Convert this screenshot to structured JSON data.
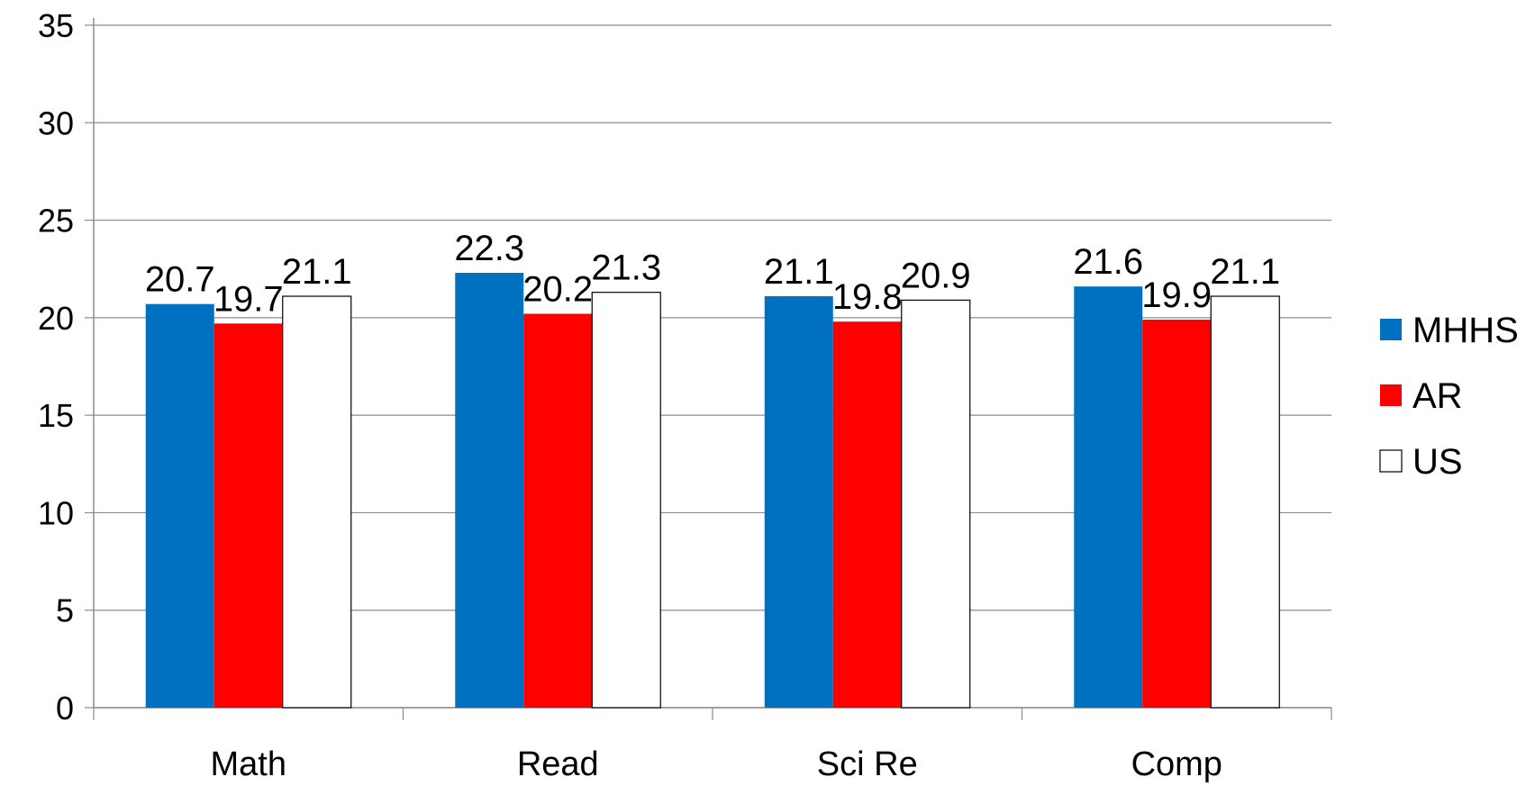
{
  "chart_data": {
    "type": "bar",
    "title": "",
    "xlabel": "",
    "ylabel": "",
    "categories": [
      "Math",
      "Read",
      "Sci Re",
      "Comp"
    ],
    "series": [
      {
        "name": "MHHS",
        "values": [
          20.7,
          22.3,
          21.1,
          21.6
        ],
        "color": "#0070C0"
      },
      {
        "name": "AR",
        "values": [
          19.7,
          20.2,
          19.8,
          19.9
        ],
        "color": "#FF0000"
      },
      {
        "name": "US",
        "values": [
          21.1,
          21.3,
          20.9,
          21.1
        ],
        "color": "#FFFFFF"
      }
    ],
    "ylim": [
      0,
      35
    ],
    "yticks": [
      0,
      5,
      10,
      15,
      20,
      25,
      30,
      35
    ],
    "grid": true,
    "legend": "right",
    "data_labels": true
  }
}
